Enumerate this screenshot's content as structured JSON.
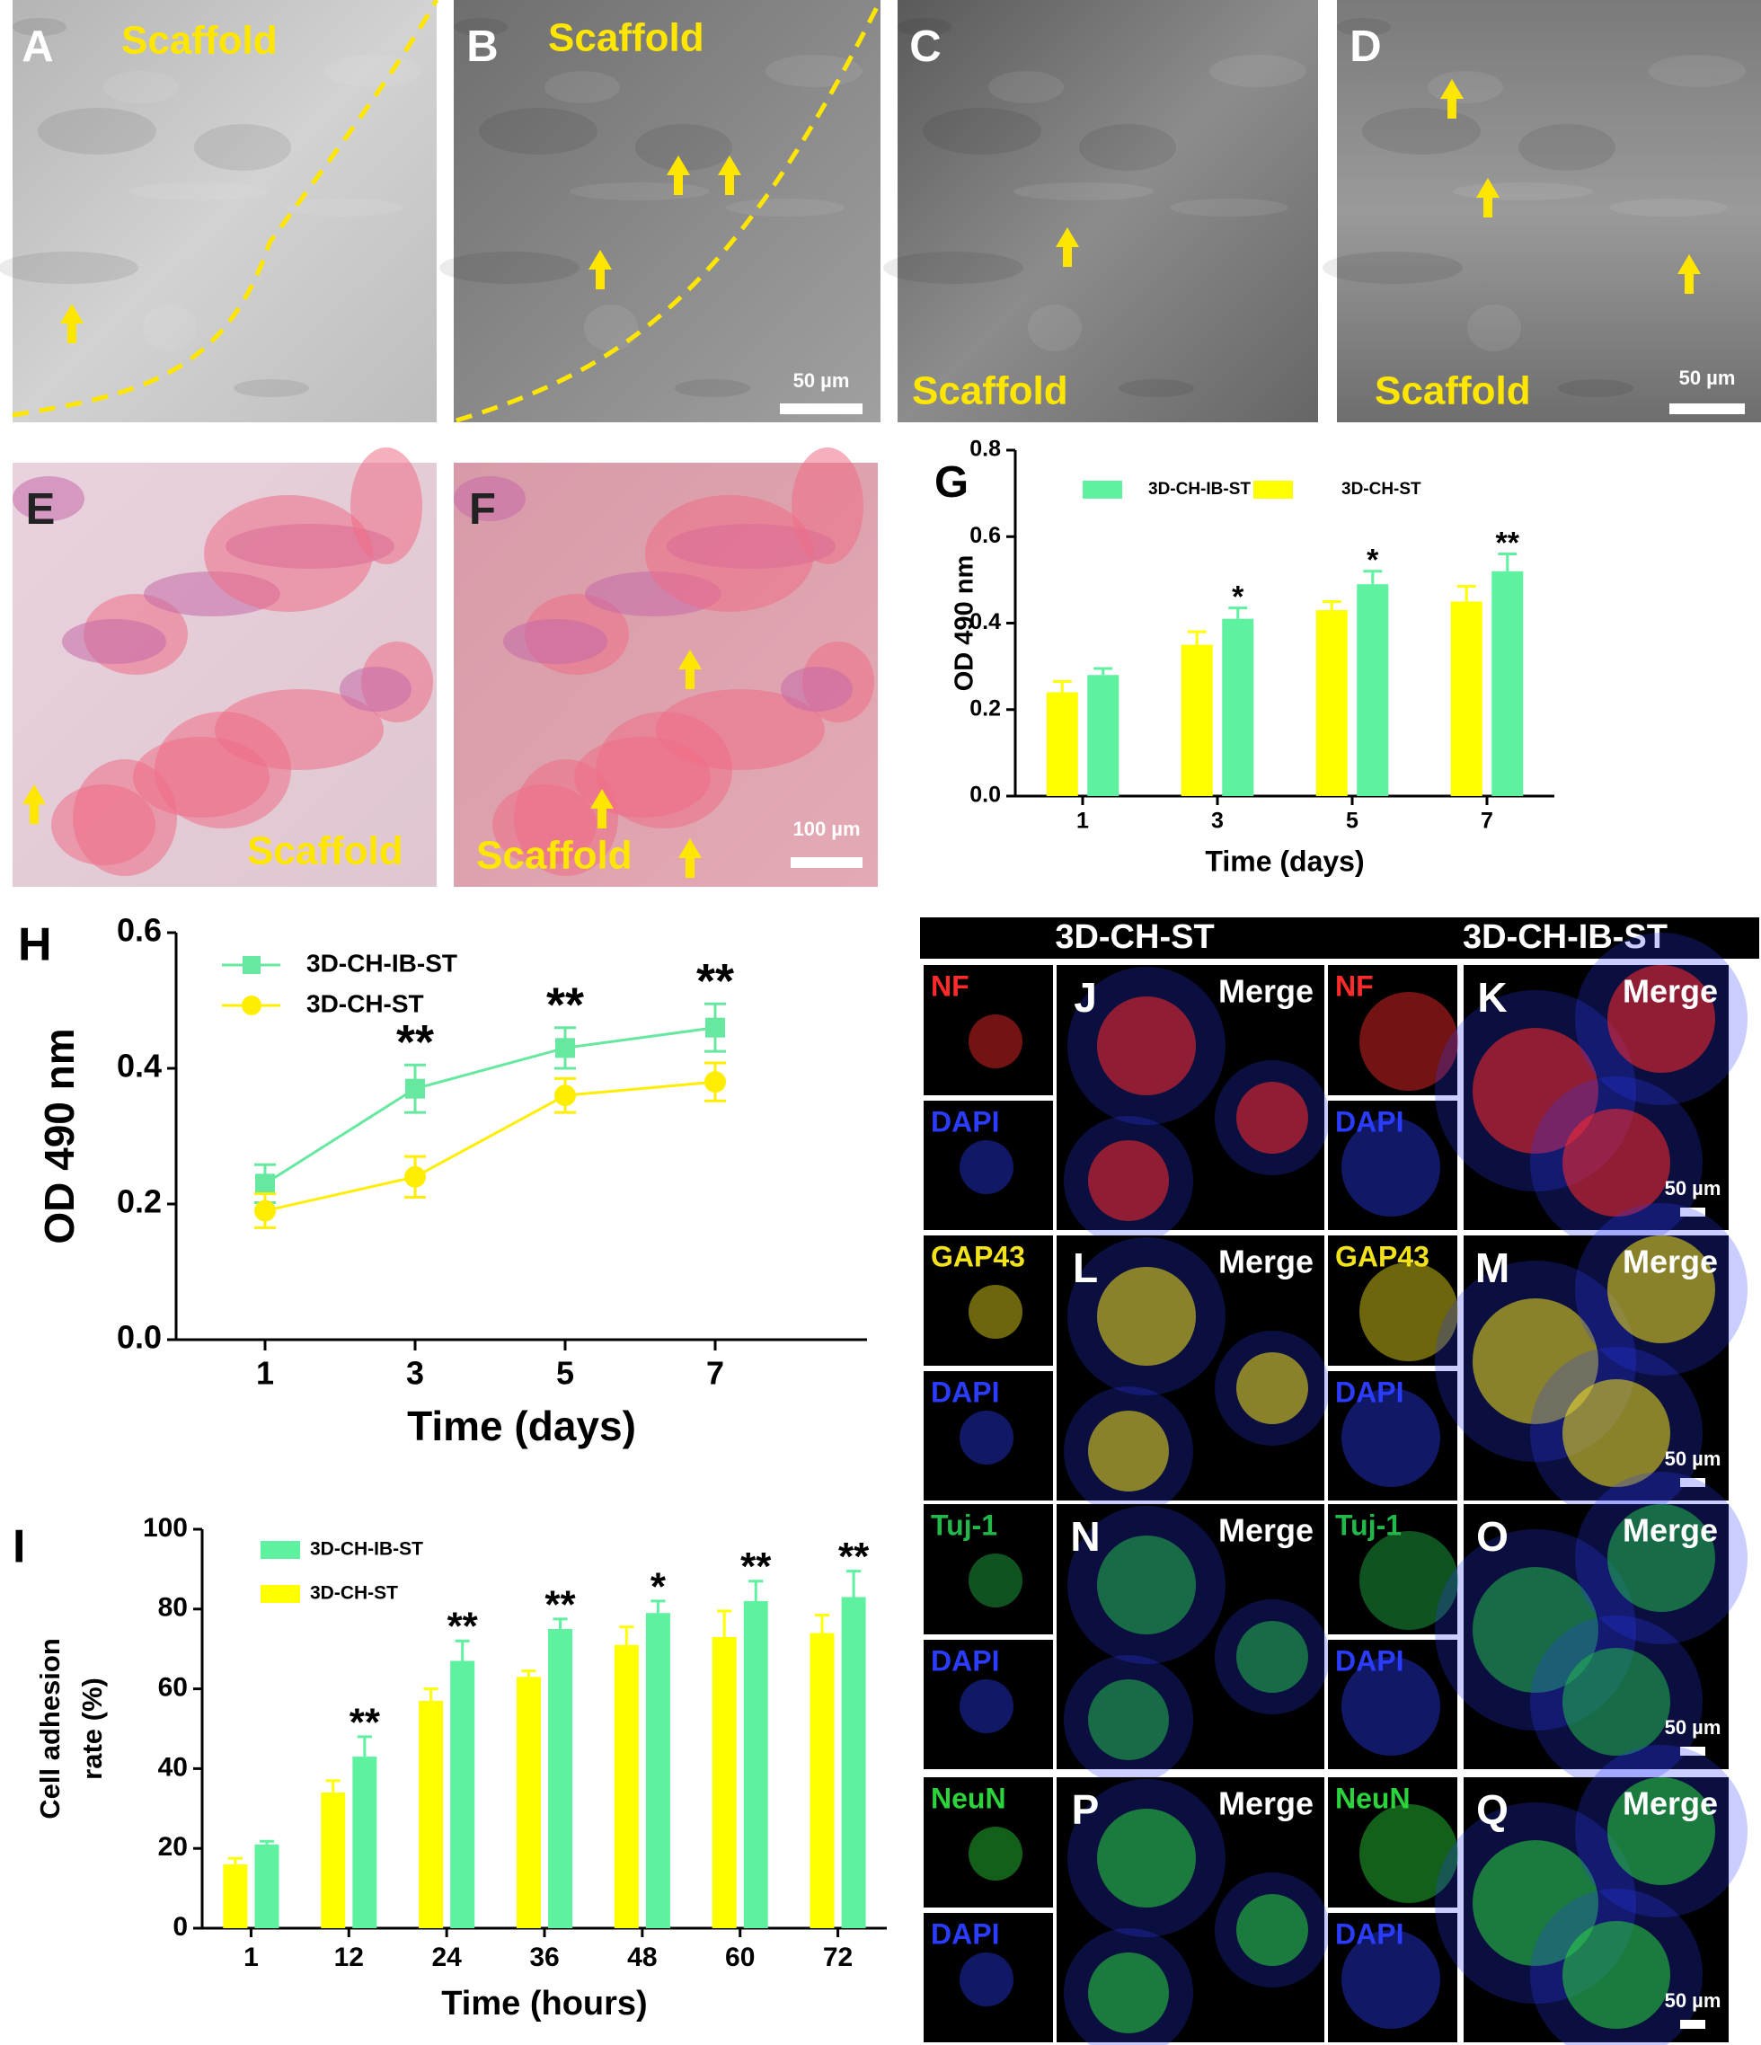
{
  "micrographs": [
    {
      "label": "A",
      "caption": "Scaffold"
    },
    {
      "label": "B",
      "caption": "Scaffold",
      "scale_bar": "50 µm"
    },
    {
      "label": "C",
      "caption": "Scaffold"
    },
    {
      "label": "D",
      "caption": "Scaffold",
      "scale_bar": "50 µm"
    },
    {
      "label": "E",
      "caption": "Scaffold"
    },
    {
      "label": "F",
      "caption": "Scaffold",
      "scale_bar": "100 µm"
    }
  ],
  "immunofluorescence": {
    "groups": [
      "3D-CH-ST",
      "3D-CH-IB-ST"
    ],
    "merge": "Merge",
    "counterstain": "DAPI",
    "counterstain_color": "#2a3cff",
    "rows": [
      {
        "marker": "NF",
        "color": "#ff2a2a",
        "panels": [
          "J",
          "K"
        ],
        "scale_bar": "50 µm"
      },
      {
        "marker": "GAP43",
        "color": "#f2e21a",
        "panels": [
          "L",
          "M"
        ],
        "scale_bar": "50 µm"
      },
      {
        "marker": "Tuj-1",
        "color": "#22b84a",
        "panels": [
          "N",
          "O"
        ],
        "scale_bar": "50 µm"
      },
      {
        "marker": "NeuN",
        "color": "#2ad43a",
        "panels": [
          "P",
          "Q"
        ],
        "scale_bar": "50 µm"
      }
    ]
  },
  "chart_data": [
    {
      "type": "bar",
      "panel_label": "G",
      "ylabel": "OD 490 nm",
      "xlabel": "Time (days)",
      "categories": [
        "1",
        "3",
        "5",
        "7"
      ],
      "series": [
        {
          "name": "3D-CH-ST",
          "color": "#ffff00",
          "values": [
            0.24,
            0.35,
            0.43,
            0.45
          ],
          "errors": [
            0.025,
            0.03,
            0.02,
            0.035
          ]
        },
        {
          "name": "3D-CH-IB-ST",
          "color": "#5ef2a0",
          "values": [
            0.28,
            0.41,
            0.49,
            0.52
          ],
          "errors": [
            0.015,
            0.025,
            0.03,
            0.04
          ],
          "significance": [
            null,
            "*",
            "*",
            "**"
          ]
        }
      ],
      "ylim": [
        0,
        0.8
      ],
      "yticks": [
        {
          "value": 0,
          "label": "0.0"
        },
        0.2,
        0.4,
        0.6,
        0.8
      ]
    },
    {
      "type": "line",
      "panel_label": "H",
      "ylabel": "OD 490 nm",
      "xlabel": "Time (days)",
      "categories": [
        "1",
        "3",
        "5",
        "7"
      ],
      "series": [
        {
          "name": "3D-CH-IB-ST",
          "color": "#66e8a0",
          "marker": "square",
          "values": [
            0.23,
            0.37,
            0.43,
            0.46
          ],
          "errors": [
            0.028,
            0.035,
            0.03,
            0.035
          ],
          "significance": [
            null,
            "**",
            "**",
            "**"
          ]
        },
        {
          "name": "3D-CH-ST",
          "color": "#ffee00",
          "marker": "circle",
          "values": [
            0.19,
            0.24,
            0.36,
            0.38
          ],
          "errors": [
            0.025,
            0.03,
            0.025,
            0.028
          ]
        }
      ],
      "ylim": [
        0,
        0.6
      ],
      "yticks": [
        {
          "value": 0,
          "label": "0.0"
        },
        {
          "value": 0.2,
          "label": "0.2"
        },
        {
          "value": 0.4,
          "label": "0.4"
        },
        {
          "value": 0.6,
          "label": "0.6"
        }
      ]
    },
    {
      "type": "bar",
      "panel_label": "I",
      "ylabel": [
        "Cell adhesion",
        "rate (%)"
      ],
      "xlabel": "Time (hours)",
      "categories": [
        "1",
        "12",
        "24",
        "36",
        "48",
        "60",
        "72"
      ],
      "series": [
        {
          "name": "3D-CH-ST",
          "color": "#ffff00",
          "values": [
            16,
            34,
            57,
            63,
            71,
            73,
            74
          ],
          "errors": [
            1.5,
            3,
            3,
            1.5,
            4.5,
            6.5,
            4.5
          ]
        },
        {
          "name": "3D-CH-IB-ST",
          "color": "#5ef2a0",
          "values": [
            21,
            43,
            67,
            75,
            79,
            82,
            83
          ],
          "errors": [
            0.8,
            5,
            5,
            2.5,
            3,
            5,
            6.5
          ],
          "significance": [
            null,
            "**",
            "**",
            "**",
            "*",
            "**",
            "**"
          ]
        }
      ],
      "ylim": [
        0,
        100
      ],
      "yticks": [
        0,
        20,
        40,
        60,
        80,
        100
      ]
    }
  ]
}
